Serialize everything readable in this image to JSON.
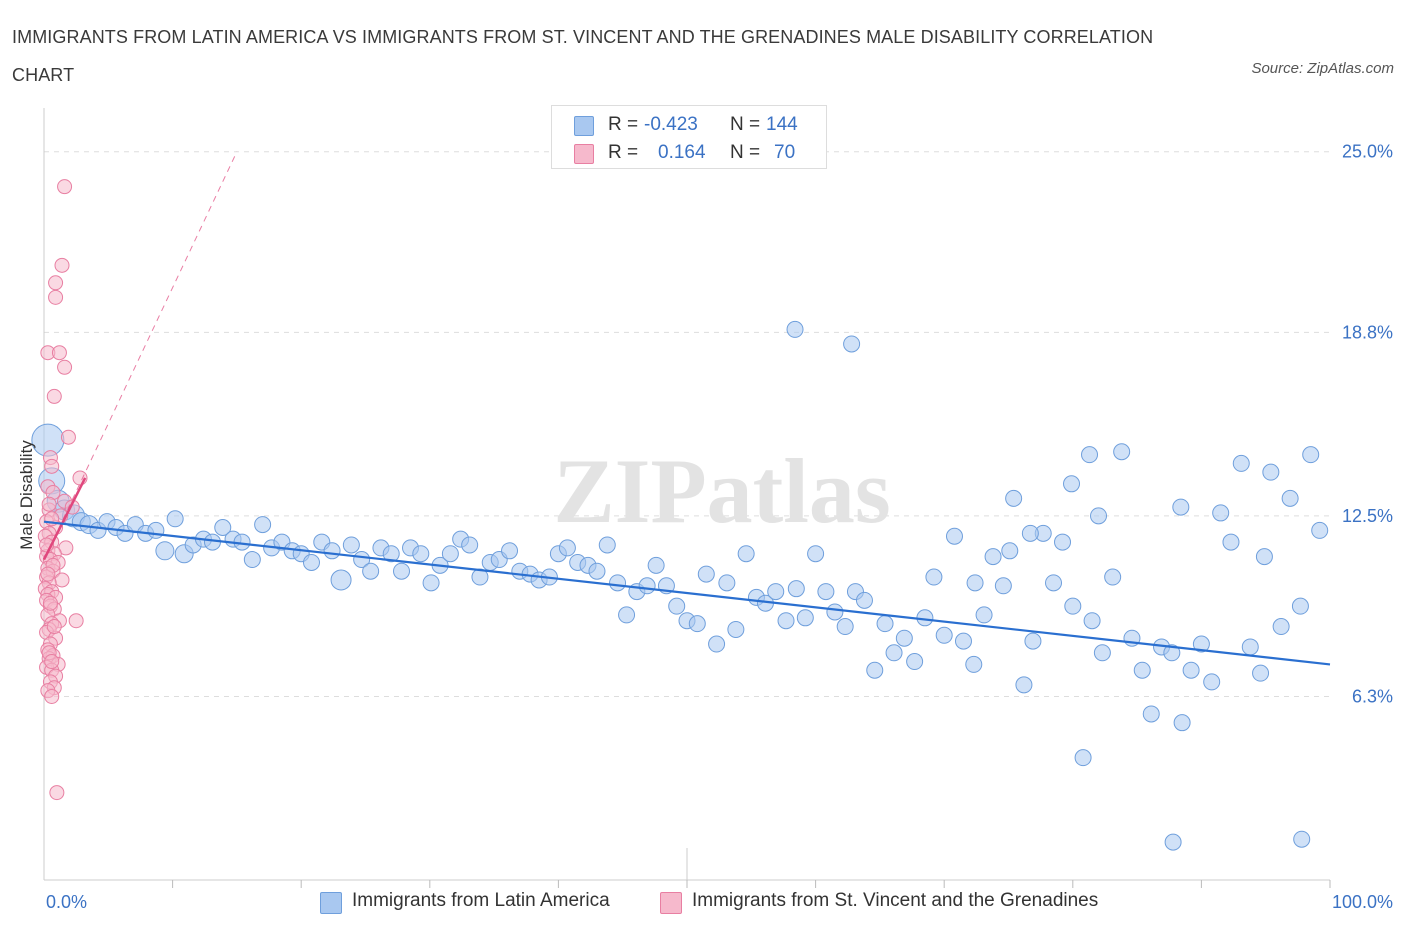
{
  "title": "IMMIGRANTS FROM LATIN AMERICA VS IMMIGRANTS FROM ST. VINCENT AND THE GRENADINES MALE DISABILITY CORRELATION CHART",
  "source": "Source: ZipAtlas.com",
  "watermark": "ZIPatlas",
  "colors": {
    "blue_fill": "#a9c8f0",
    "blue_stroke": "#6f9fdc",
    "blue_line": "#2a6fd0",
    "pink_fill": "#f6b9cc",
    "pink_stroke": "#e87fa2",
    "pink_line": "#e0477d",
    "axis_text": "#3b72c4",
    "grid": "#dddddd"
  },
  "stats_legend": {
    "rows": [
      {
        "r_label": "R =",
        "r_value": "-0.423",
        "n_label": "N =",
        "n_value": "144",
        "color": "blue"
      },
      {
        "r_label": "R =",
        "r_value": "0.164",
        "n_label": "N =",
        "n_value": "70",
        "color": "pink"
      }
    ]
  },
  "legend": [
    {
      "label": "Immigrants from Latin America",
      "color": "blue"
    },
    {
      "label": "Immigrants from St. Vincent and the Grenadines",
      "color": "pink"
    }
  ],
  "chart_data": {
    "type": "scatter",
    "title": "IMMIGRANTS FROM LATIN AMERICA VS IMMIGRANTS FROM ST. VINCENT AND THE GRENADINES MALE DISABILITY CORRELATION CHART",
    "xlabel": "",
    "ylabel": "Male Disability",
    "xlim": [
      0,
      100
    ],
    "ylim": [
      0,
      26.5
    ],
    "x_tick_labels": [
      "0.0%",
      "100.0%"
    ],
    "y_ticks": [
      6.3,
      12.5,
      18.8,
      25.0
    ],
    "y_tick_labels": [
      "6.3%",
      "12.5%",
      "18.8%",
      "25.0%"
    ],
    "grid": true,
    "legend_position": "bottom",
    "series": [
      {
        "name": "Immigrants from Latin America",
        "color": "blue",
        "R": -0.423,
        "N": 144,
        "trend": {
          "x": [
            0,
            100
          ],
          "y": [
            12.3,
            7.4
          ]
        },
        "points": [
          [
            0.3,
            15.1,
            16
          ],
          [
            0.6,
            13.7,
            13
          ],
          [
            1.1,
            13.0,
            11
          ],
          [
            1.6,
            12.7,
            10
          ],
          [
            2.3,
            12.5,
            11
          ],
          [
            2.9,
            12.3,
            9
          ],
          [
            3.5,
            12.2,
            9
          ],
          [
            4.2,
            12.0,
            8
          ],
          [
            4.9,
            12.3,
            8
          ],
          [
            5.6,
            12.1,
            8
          ],
          [
            6.3,
            11.9,
            8
          ],
          [
            7.1,
            12.2,
            8
          ],
          [
            7.9,
            11.9,
            8
          ],
          [
            8.7,
            12.0,
            8
          ],
          [
            9.4,
            11.3,
            9
          ],
          [
            10.2,
            12.4,
            8
          ],
          [
            10.9,
            11.2,
            9
          ],
          [
            11.6,
            11.5,
            8
          ],
          [
            12.4,
            11.7,
            8
          ],
          [
            13.1,
            11.6,
            8
          ],
          [
            13.9,
            12.1,
            8
          ],
          [
            14.7,
            11.7,
            8
          ],
          [
            15.4,
            11.6,
            8
          ],
          [
            16.2,
            11.0,
            8
          ],
          [
            17.0,
            12.2,
            8
          ],
          [
            17.7,
            11.4,
            8
          ],
          [
            18.5,
            11.6,
            8
          ],
          [
            19.3,
            11.3,
            8
          ],
          [
            20.0,
            11.2,
            8
          ],
          [
            20.8,
            10.9,
            8
          ],
          [
            21.6,
            11.6,
            8
          ],
          [
            22.4,
            11.3,
            8
          ],
          [
            23.1,
            10.3,
            10
          ],
          [
            23.9,
            11.5,
            8
          ],
          [
            24.7,
            11.0,
            8
          ],
          [
            25.4,
            10.6,
            8
          ],
          [
            26.2,
            11.4,
            8
          ],
          [
            27.0,
            11.2,
            8
          ],
          [
            27.8,
            10.6,
            8
          ],
          [
            28.5,
            11.4,
            8
          ],
          [
            29.3,
            11.2,
            8
          ],
          [
            30.1,
            10.2,
            8
          ],
          [
            30.8,
            10.8,
            8
          ],
          [
            31.6,
            11.2,
            8
          ],
          [
            32.4,
            11.7,
            8
          ],
          [
            33.1,
            11.5,
            8
          ],
          [
            33.9,
            10.4,
            8
          ],
          [
            34.7,
            10.9,
            8
          ],
          [
            35.4,
            11.0,
            8
          ],
          [
            36.2,
            11.3,
            8
          ],
          [
            37.0,
            10.6,
            8
          ],
          [
            37.8,
            10.5,
            8
          ],
          [
            38.5,
            10.3,
            8
          ],
          [
            39.3,
            10.4,
            8
          ],
          [
            40.0,
            11.2,
            8
          ],
          [
            40.7,
            11.4,
            8
          ],
          [
            41.5,
            10.9,
            8
          ],
          [
            42.3,
            10.8,
            8
          ],
          [
            43.0,
            10.6,
            8
          ],
          [
            43.8,
            11.5,
            8
          ],
          [
            44.6,
            10.2,
            8
          ],
          [
            45.3,
            9.1,
            8
          ],
          [
            46.1,
            9.9,
            8
          ],
          [
            46.9,
            10.1,
            8
          ],
          [
            47.6,
            10.8,
            8
          ],
          [
            48.4,
            10.1,
            8
          ],
          [
            49.2,
            9.4,
            8
          ],
          [
            50.0,
            8.9,
            8
          ],
          [
            50.8,
            8.8,
            8
          ],
          [
            51.5,
            10.5,
            8
          ],
          [
            52.3,
            8.1,
            8
          ],
          [
            53.1,
            10.2,
            8
          ],
          [
            53.8,
            8.6,
            8
          ],
          [
            54.6,
            11.2,
            8
          ],
          [
            55.4,
            9.7,
            8
          ],
          [
            56.1,
            9.5,
            8
          ],
          [
            56.9,
            9.9,
            8
          ],
          [
            57.7,
            8.9,
            8
          ],
          [
            58.5,
            10.0,
            8
          ],
          [
            59.2,
            9.0,
            8
          ],
          [
            60.0,
            11.2,
            8
          ],
          [
            60.8,
            9.9,
            8
          ],
          [
            61.5,
            9.2,
            8
          ],
          [
            62.3,
            8.7,
            8
          ],
          [
            63.1,
            9.9,
            8
          ],
          [
            63.8,
            9.6,
            8
          ],
          [
            64.6,
            7.2,
            8
          ],
          [
            65.4,
            8.8,
            8
          ],
          [
            66.1,
            7.8,
            8
          ],
          [
            66.9,
            8.3,
            8
          ],
          [
            67.7,
            7.5,
            8
          ],
          [
            68.5,
            9.0,
            8
          ],
          [
            69.2,
            10.4,
            8
          ],
          [
            70.0,
            8.4,
            8
          ],
          [
            70.8,
            11.8,
            8
          ],
          [
            71.5,
            8.2,
            8
          ],
          [
            72.3,
            7.4,
            8
          ],
          [
            73.1,
            9.1,
            8
          ],
          [
            73.8,
            11.1,
            8
          ],
          [
            74.6,
            10.1,
            8
          ],
          [
            75.4,
            13.1,
            8
          ],
          [
            76.2,
            6.7,
            8
          ],
          [
            76.9,
            8.2,
            8
          ],
          [
            77.7,
            11.9,
            8
          ],
          [
            78.5,
            10.2,
            8
          ],
          [
            79.2,
            11.6,
            8
          ],
          [
            80.0,
            9.4,
            8
          ],
          [
            80.8,
            4.2,
            8
          ],
          [
            81.5,
            8.9,
            8
          ],
          [
            82.3,
            7.8,
            8
          ],
          [
            83.1,
            10.4,
            8
          ],
          [
            83.8,
            14.7,
            8
          ],
          [
            84.6,
            8.3,
            8
          ],
          [
            85.4,
            7.2,
            8
          ],
          [
            86.1,
            5.7,
            8
          ],
          [
            86.9,
            8.0,
            8
          ],
          [
            87.7,
            7.8,
            8
          ],
          [
            88.5,
            5.4,
            8
          ],
          [
            89.2,
            7.2,
            8
          ],
          [
            90.0,
            8.1,
            8
          ],
          [
            90.8,
            6.8,
            8
          ],
          [
            91.5,
            12.6,
            8
          ],
          [
            92.3,
            11.6,
            8
          ],
          [
            93.1,
            14.3,
            8
          ],
          [
            93.8,
            8.0,
            8
          ],
          [
            94.6,
            7.1,
            8
          ],
          [
            95.4,
            14.0,
            8
          ],
          [
            96.2,
            8.7,
            8
          ],
          [
            96.9,
            13.1,
            8
          ],
          [
            97.7,
            9.4,
            8
          ],
          [
            98.5,
            14.6,
            8
          ],
          [
            99.2,
            12.0,
            8
          ],
          [
            58.4,
            18.9,
            8
          ],
          [
            62.8,
            18.4,
            8
          ],
          [
            87.8,
            1.3,
            8
          ],
          [
            97.8,
            1.4,
            8
          ],
          [
            82.0,
            12.5,
            8
          ],
          [
            75.1,
            11.3,
            8
          ],
          [
            72.4,
            10.2,
            8
          ],
          [
            81.3,
            14.6,
            8
          ],
          [
            88.4,
            12.8,
            8
          ],
          [
            94.9,
            11.1,
            8
          ],
          [
            79.9,
            13.6,
            8
          ],
          [
            76.7,
            11.9,
            8
          ]
        ]
      },
      {
        "name": "Immigrants from St. Vincent and the Grenadines",
        "color": "pink",
        "R": 0.164,
        "N": 70,
        "trend": {
          "x": [
            0,
            3.2
          ],
          "y": [
            11.0,
            13.8
          ]
        },
        "trend_dashed": {
          "x": [
            0,
            15
          ],
          "y": [
            11.0,
            25.0
          ]
        },
        "points": [
          [
            1.6,
            23.8
          ],
          [
            1.4,
            21.1
          ],
          [
            0.9,
            20.5
          ],
          [
            0.9,
            20.0
          ],
          [
            0.3,
            18.1
          ],
          [
            1.2,
            18.1
          ],
          [
            1.6,
            17.6
          ],
          [
            0.8,
            16.6
          ],
          [
            1.9,
            15.2
          ],
          [
            0.5,
            14.5
          ],
          [
            0.6,
            14.2
          ],
          [
            2.8,
            13.8
          ],
          [
            0.3,
            13.5
          ],
          [
            0.7,
            13.3
          ],
          [
            1.6,
            13.0
          ],
          [
            2.2,
            12.8
          ],
          [
            0.4,
            12.7
          ],
          [
            1.3,
            12.5
          ],
          [
            0.2,
            12.3
          ],
          [
            0.9,
            12.1
          ],
          [
            0.4,
            11.9
          ],
          [
            0.1,
            11.8
          ],
          [
            0.6,
            11.6
          ],
          [
            1.7,
            11.4
          ],
          [
            0.3,
            11.3
          ],
          [
            0.8,
            11.2
          ],
          [
            0.2,
            11.1
          ],
          [
            0.5,
            11.0
          ],
          [
            1.1,
            10.9
          ],
          [
            0.3,
            10.7
          ],
          [
            0.7,
            10.6
          ],
          [
            0.2,
            10.4
          ],
          [
            1.4,
            10.3
          ],
          [
            0.4,
            10.2
          ],
          [
            0.1,
            10.0
          ],
          [
            0.6,
            9.9
          ],
          [
            0.3,
            9.8
          ],
          [
            0.9,
            9.7
          ],
          [
            0.2,
            9.6
          ],
          [
            0.5,
            9.4
          ],
          [
            0.8,
            9.3
          ],
          [
            0.3,
            9.1
          ],
          [
            1.2,
            8.9
          ],
          [
            0.6,
            8.8
          ],
          [
            2.5,
            8.9
          ],
          [
            0.4,
            8.6
          ],
          [
            0.2,
            8.5
          ],
          [
            0.9,
            8.3
          ],
          [
            0.5,
            8.1
          ],
          [
            0.3,
            7.9
          ],
          [
            0.7,
            7.7
          ],
          [
            0.4,
            7.6
          ],
          [
            1.1,
            7.4
          ],
          [
            0.2,
            7.3
          ],
          [
            0.6,
            7.2
          ],
          [
            0.9,
            7.0
          ],
          [
            0.5,
            6.8
          ],
          [
            0.8,
            6.6
          ],
          [
            0.3,
            6.5
          ],
          [
            0.6,
            6.3
          ],
          [
            1.0,
            3.0
          ],
          [
            0.4,
            12.9
          ],
          [
            0.6,
            12.4
          ],
          [
            0.2,
            11.5
          ],
          [
            0.7,
            10.8
          ],
          [
            0.3,
            10.5
          ],
          [
            0.5,
            9.5
          ],
          [
            0.8,
            8.7
          ],
          [
            0.4,
            7.8
          ],
          [
            0.6,
            7.5
          ]
        ]
      }
    ]
  }
}
